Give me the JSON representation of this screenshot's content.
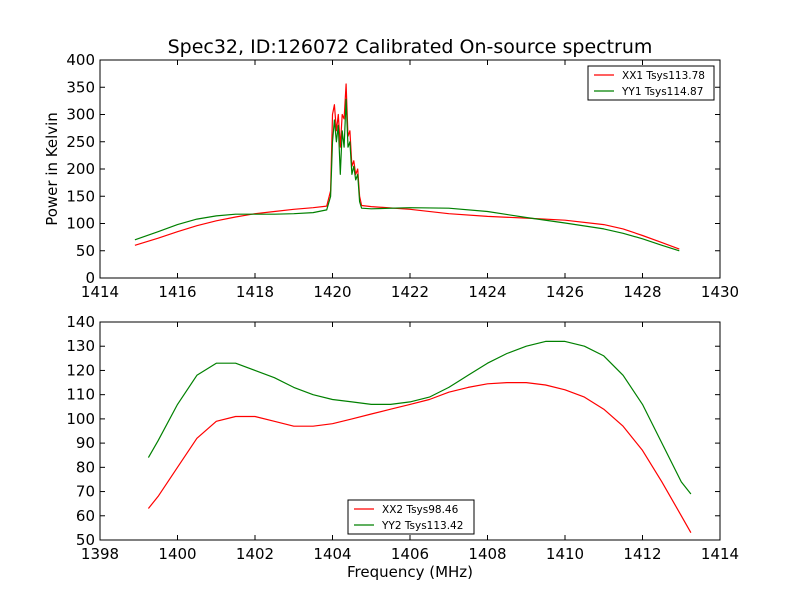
{
  "figure": {
    "title": "Spec32, ID:126072 Calibrated On-source spectrum",
    "ylabel": "Power in Kelvin",
    "xlabel": "Frequency (MHz)"
  },
  "chart_data": [
    {
      "type": "line",
      "title": "Spec32, ID:126072 Calibrated On-source spectrum",
      "xlabel": "",
      "ylabel": "Power in Kelvin",
      "xlim": [
        1414,
        1430
      ],
      "ylim": [
        0,
        400
      ],
      "xticks": [
        1414,
        1416,
        1418,
        1420,
        1422,
        1424,
        1426,
        1428,
        1430
      ],
      "yticks": [
        0,
        50,
        100,
        150,
        200,
        250,
        300,
        350,
        400
      ],
      "grid": false,
      "legend": "top-right",
      "series": [
        {
          "name": "XX1 Tsys113.78",
          "color": "#ff0000",
          "points": [
            [
              1414.9,
              60
            ],
            [
              1415.5,
              73
            ],
            [
              1416.0,
              85
            ],
            [
              1416.5,
              96
            ],
            [
              1417.0,
              105
            ],
            [
              1417.5,
              112
            ],
            [
              1418.0,
              118
            ],
            [
              1418.5,
              122
            ],
            [
              1419.0,
              126
            ],
            [
              1419.5,
              129
            ],
            [
              1419.85,
              132
            ],
            [
              1419.95,
              160
            ],
            [
              1420.0,
              300
            ],
            [
              1420.05,
              318
            ],
            [
              1420.1,
              270
            ],
            [
              1420.15,
              300
            ],
            [
              1420.2,
              240
            ],
            [
              1420.25,
              300
            ],
            [
              1420.3,
              292
            ],
            [
              1420.35,
              356
            ],
            [
              1420.4,
              260
            ],
            [
              1420.45,
              270
            ],
            [
              1420.5,
              205
            ],
            [
              1420.55,
              215
            ],
            [
              1420.6,
              190
            ],
            [
              1420.65,
              200
            ],
            [
              1420.7,
              150
            ],
            [
              1420.75,
              133
            ],
            [
              1421.0,
              131
            ],
            [
              1422.0,
              126
            ],
            [
              1423.0,
              118
            ],
            [
              1424.0,
              113
            ],
            [
              1425.0,
              110
            ],
            [
              1426.0,
              106
            ],
            [
              1427.0,
              98
            ],
            [
              1427.5,
              90
            ],
            [
              1428.0,
              78
            ],
            [
              1428.5,
              65
            ],
            [
              1428.95,
              53
            ]
          ]
        },
        {
          "name": "YY1 Tsys114.87",
          "color": "#008000",
          "points": [
            [
              1414.9,
              70
            ],
            [
              1415.5,
              85
            ],
            [
              1416.0,
              98
            ],
            [
              1416.5,
              108
            ],
            [
              1417.0,
              114
            ],
            [
              1417.5,
              117
            ],
            [
              1418.0,
              117
            ],
            [
              1418.5,
              117
            ],
            [
              1419.0,
              118
            ],
            [
              1419.5,
              120
            ],
            [
              1419.85,
              125
            ],
            [
              1419.95,
              150
            ],
            [
              1420.0,
              250
            ],
            [
              1420.05,
              290
            ],
            [
              1420.1,
              250
            ],
            [
              1420.15,
              280
            ],
            [
              1420.2,
              190
            ],
            [
              1420.25,
              270
            ],
            [
              1420.3,
              240
            ],
            [
              1420.35,
              328
            ],
            [
              1420.4,
              240
            ],
            [
              1420.45,
              250
            ],
            [
              1420.5,
              190
            ],
            [
              1420.55,
              205
            ],
            [
              1420.6,
              180
            ],
            [
              1420.65,
              190
            ],
            [
              1420.7,
              140
            ],
            [
              1420.75,
              128
            ],
            [
              1421.0,
              127
            ],
            [
              1422.0,
              129
            ],
            [
              1423.0,
              128
            ],
            [
              1424.0,
              122
            ],
            [
              1425.0,
              111
            ],
            [
              1426.0,
              101
            ],
            [
              1427.0,
              90
            ],
            [
              1427.5,
              82
            ],
            [
              1428.0,
              72
            ],
            [
              1428.5,
              60
            ],
            [
              1428.95,
              50
            ]
          ]
        }
      ]
    },
    {
      "type": "line",
      "title": "",
      "xlabel": "Frequency (MHz)",
      "ylabel": "",
      "xlim": [
        1398,
        1414
      ],
      "ylim": [
        50,
        140
      ],
      "xticks": [
        1398,
        1400,
        1402,
        1404,
        1406,
        1408,
        1410,
        1412,
        1414
      ],
      "yticks": [
        50,
        60,
        70,
        80,
        90,
        100,
        110,
        120,
        130,
        140
      ],
      "grid": false,
      "legend": "bottom-center",
      "series": [
        {
          "name": "XX2 Tsys98.46",
          "color": "#ff0000",
          "points": [
            [
              1399.25,
              63
            ],
            [
              1399.5,
              68
            ],
            [
              1400.0,
              80
            ],
            [
              1400.5,
              92
            ],
            [
              1401.0,
              99
            ],
            [
              1401.5,
              101
            ],
            [
              1402.0,
              101
            ],
            [
              1402.5,
              99
            ],
            [
              1403.0,
              97
            ],
            [
              1403.5,
              97
            ],
            [
              1404.0,
              98
            ],
            [
              1404.5,
              100
            ],
            [
              1405.0,
              102
            ],
            [
              1405.5,
              104
            ],
            [
              1406.0,
              106
            ],
            [
              1406.5,
              108
            ],
            [
              1407.0,
              111
            ],
            [
              1407.5,
              113
            ],
            [
              1408.0,
              114.5
            ],
            [
              1408.5,
              115
            ],
            [
              1409.0,
              115
            ],
            [
              1409.5,
              114
            ],
            [
              1410.0,
              112
            ],
            [
              1410.5,
              109
            ],
            [
              1411.0,
              104
            ],
            [
              1411.5,
              97
            ],
            [
              1412.0,
              87
            ],
            [
              1412.5,
              74
            ],
            [
              1413.0,
              60
            ],
            [
              1413.25,
              53
            ]
          ]
        },
        {
          "name": "YY2 Tsys113.42",
          "color": "#008000",
          "points": [
            [
              1399.25,
              84
            ],
            [
              1399.5,
              91
            ],
            [
              1400.0,
              106
            ],
            [
              1400.5,
              118
            ],
            [
              1401.0,
              123
            ],
            [
              1401.5,
              123
            ],
            [
              1402.0,
              120
            ],
            [
              1402.5,
              117
            ],
            [
              1403.0,
              113
            ],
            [
              1403.5,
              110
            ],
            [
              1404.0,
              108
            ],
            [
              1404.5,
              107
            ],
            [
              1405.0,
              106
            ],
            [
              1405.5,
              106
            ],
            [
              1406.0,
              107
            ],
            [
              1406.5,
              109
            ],
            [
              1407.0,
              113
            ],
            [
              1407.5,
              118
            ],
            [
              1408.0,
              123
            ],
            [
              1408.5,
              127
            ],
            [
              1409.0,
              130
            ],
            [
              1409.5,
              132
            ],
            [
              1410.0,
              132
            ],
            [
              1410.5,
              130
            ],
            [
              1411.0,
              126
            ],
            [
              1411.5,
              118
            ],
            [
              1412.0,
              106
            ],
            [
              1412.5,
              90
            ],
            [
              1413.0,
              74
            ],
            [
              1413.25,
              69
            ]
          ]
        }
      ]
    }
  ]
}
